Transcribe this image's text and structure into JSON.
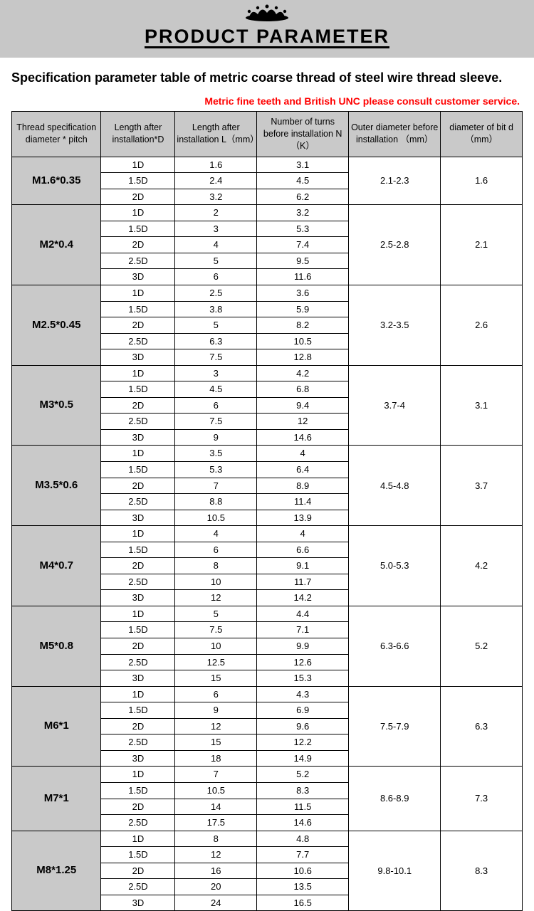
{
  "header": {
    "title": "PRODUCT PARAMETER"
  },
  "subtitle": "Specification parameter table of metric coarse thread of steel wire thread sleeve.",
  "note": "Metric fine teeth and British UNC please consult customer service.",
  "colors": {
    "header_bg": "#c7c7c7",
    "note_color": "#ff0000",
    "cell_bg": "#c9c9c9",
    "border": "#000000"
  },
  "table": {
    "columns": [
      "Thread specification diameter * pitch",
      "Length after installation*D",
      "Length after installation L（mm）",
      "Number of turns before installation N（K）",
      "Outer diameter before installation （mm）",
      "diameter of bit d（mm）"
    ],
    "groups": [
      {
        "spec": "M1.6*0.35",
        "outer": "2.1-2.3",
        "bit": "1.6",
        "rows": [
          {
            "d": "1D",
            "l": "1.6",
            "n": "3.1"
          },
          {
            "d": "1.5D",
            "l": "2.4",
            "n": "4.5"
          },
          {
            "d": "2D",
            "l": "3.2",
            "n": "6.2"
          }
        ]
      },
      {
        "spec": "M2*0.4",
        "outer": "2.5-2.8",
        "bit": "2.1",
        "rows": [
          {
            "d": "1D",
            "l": "2",
            "n": "3.2"
          },
          {
            "d": "1.5D",
            "l": "3",
            "n": "5.3"
          },
          {
            "d": "2D",
            "l": "4",
            "n": "7.4"
          },
          {
            "d": "2.5D",
            "l": "5",
            "n": "9.5"
          },
          {
            "d": "3D",
            "l": "6",
            "n": "11.6"
          }
        ]
      },
      {
        "spec": "M2.5*0.45",
        "outer": "3.2-3.5",
        "bit": "2.6",
        "rows": [
          {
            "d": "1D",
            "l": "2.5",
            "n": "3.6"
          },
          {
            "d": "1.5D",
            "l": "3.8",
            "n": "5.9"
          },
          {
            "d": "2D",
            "l": "5",
            "n": "8.2"
          },
          {
            "d": "2.5D",
            "l": "6.3",
            "n": "10.5"
          },
          {
            "d": "3D",
            "l": "7.5",
            "n": "12.8"
          }
        ]
      },
      {
        "spec": "M3*0.5",
        "outer": "3.7-4",
        "bit": "3.1",
        "rows": [
          {
            "d": "1D",
            "l": "3",
            "n": "4.2"
          },
          {
            "d": "1.5D",
            "l": "4.5",
            "n": "6.8"
          },
          {
            "d": "2D",
            "l": "6",
            "n": "9.4"
          },
          {
            "d": "2.5D",
            "l": "7.5",
            "n": "12"
          },
          {
            "d": "3D",
            "l": "9",
            "n": "14.6"
          }
        ]
      },
      {
        "spec": "M3.5*0.6",
        "outer": "4.5-4.8",
        "bit": "3.7",
        "rows": [
          {
            "d": "1D",
            "l": "3.5",
            "n": "4"
          },
          {
            "d": "1.5D",
            "l": "5.3",
            "n": "6.4"
          },
          {
            "d": "2D",
            "l": "7",
            "n": "8.9"
          },
          {
            "d": "2.5D",
            "l": "8.8",
            "n": "11.4"
          },
          {
            "d": "3D",
            "l": "10.5",
            "n": "13.9"
          }
        ]
      },
      {
        "spec": "M4*0.7",
        "outer": "5.0-5.3",
        "bit": "4.2",
        "rows": [
          {
            "d": "1D",
            "l": "4",
            "n": "4"
          },
          {
            "d": "1.5D",
            "l": "6",
            "n": "6.6"
          },
          {
            "d": "2D",
            "l": "8",
            "n": "9.1"
          },
          {
            "d": "2.5D",
            "l": "10",
            "n": "11.7"
          },
          {
            "d": "3D",
            "l": "12",
            "n": "14.2"
          }
        ]
      },
      {
        "spec": "M5*0.8",
        "outer": "6.3-6.6",
        "bit": "5.2",
        "rows": [
          {
            "d": "1D",
            "l": "5",
            "n": "4.4"
          },
          {
            "d": "1.5D",
            "l": "7.5",
            "n": "7.1"
          },
          {
            "d": "2D",
            "l": "10",
            "n": "9.9"
          },
          {
            "d": "2.5D",
            "l": "12.5",
            "n": "12.6"
          },
          {
            "d": "3D",
            "l": "15",
            "n": "15.3"
          }
        ]
      },
      {
        "spec": "M6*1",
        "outer": "7.5-7.9",
        "bit": "6.3",
        "rows": [
          {
            "d": "1D",
            "l": "6",
            "n": "4.3"
          },
          {
            "d": "1.5D",
            "l": "9",
            "n": "6.9"
          },
          {
            "d": "2D",
            "l": "12",
            "n": "9.6"
          },
          {
            "d": "2.5D",
            "l": "15",
            "n": "12.2"
          },
          {
            "d": "3D",
            "l": "18",
            "n": "14.9"
          }
        ]
      },
      {
        "spec": "M7*1",
        "outer": "8.6-8.9",
        "bit": "7.3",
        "rows": [
          {
            "d": "1D",
            "l": "7",
            "n": "5.2"
          },
          {
            "d": "1.5D",
            "l": "10.5",
            "n": "8.3"
          },
          {
            "d": "2D",
            "l": "14",
            "n": "11.5"
          },
          {
            "d": "2.5D",
            "l": "17.5",
            "n": "14.6"
          }
        ]
      },
      {
        "spec": "M8*1.25",
        "outer": "9.8-10.1",
        "bit": "8.3",
        "rows": [
          {
            "d": "1D",
            "l": "8",
            "n": "4.8"
          },
          {
            "d": "1.5D",
            "l": "12",
            "n": "7.7"
          },
          {
            "d": "2D",
            "l": "16",
            "n": "10.6"
          },
          {
            "d": "2.5D",
            "l": "20",
            "n": "13.5"
          },
          {
            "d": "3D",
            "l": "24",
            "n": "16.5"
          }
        ]
      }
    ]
  }
}
